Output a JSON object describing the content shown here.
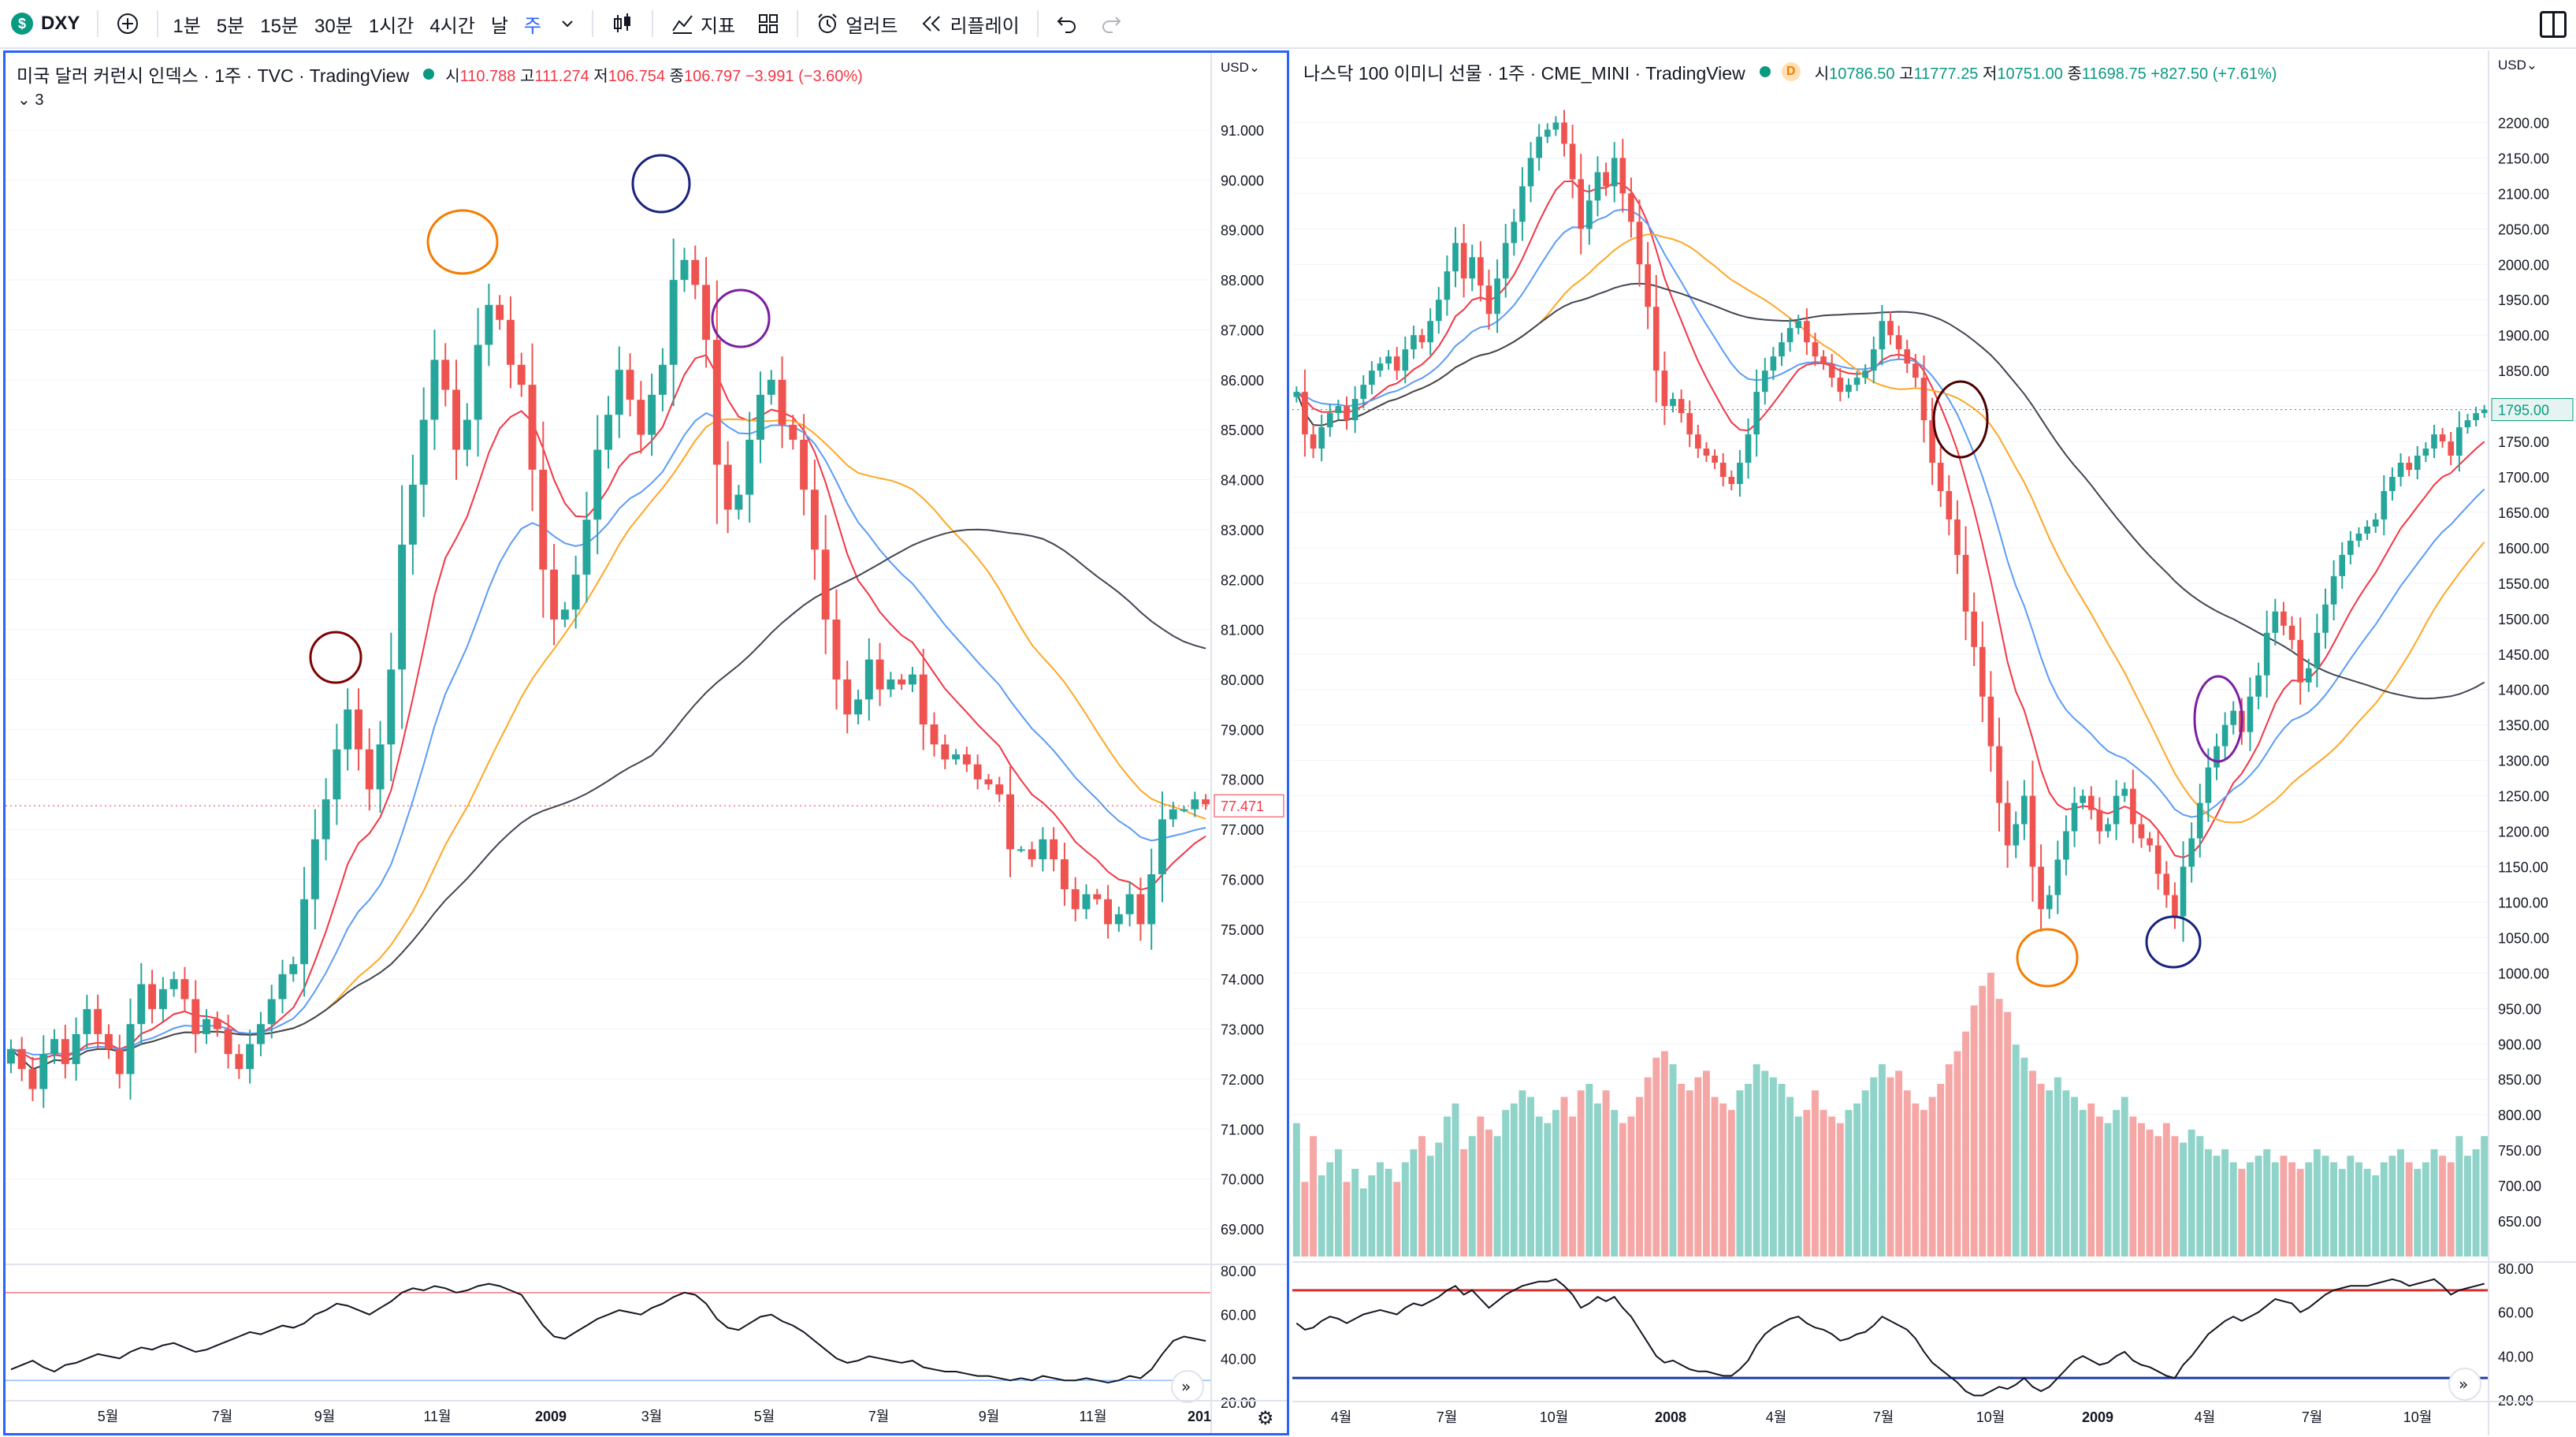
{
  "toolbar": {
    "symbol_icon": "$",
    "symbol": "DXY",
    "add_icon": "plus-circle-icon",
    "intervals": [
      "1분",
      "5분",
      "15분",
      "30분",
      "1시간",
      "4시간",
      "날",
      "주"
    ],
    "active_interval": "주",
    "indicators_label": "지표",
    "alert_label": "얼러트",
    "replay_label": "리플레이"
  },
  "colors": {
    "up": "#26a69a",
    "down": "#ef5350",
    "ma1": "#f23645",
    "ma2": "#5b9cf6",
    "ma3": "#ffa726",
    "ma4": "#434651",
    "rsi": "#131722",
    "volume_up": "#8fd3c9",
    "volume_down": "#f5a7a6"
  },
  "left": {
    "title": "미국 달러 커런시 인덱스 · 1주 · TVC · TradingView",
    "ohlc": {
      "o_label": "시",
      "o": "110.788",
      "h_label": "고",
      "h": "111.274",
      "l_label": "저",
      "l": "106.754",
      "c_label": "종",
      "c": "106.797",
      "chg": "−3.991 (−3.60%)"
    },
    "indicator_count": "3",
    "currency": "USD",
    "last_price": "77.471"
  },
  "right": {
    "title": "나스닥 100 이미니 선물 · 1주 · CME_MINI · TradingView",
    "d_badge": "D",
    "ohlc": {
      "o_label": "시",
      "o": "10786.50",
      "h_label": "고",
      "h": "11777.25",
      "l_label": "저",
      "l": "10751.00",
      "c_label": "종",
      "c": "11698.75",
      "chg": "+827.50 (+7.61%)"
    },
    "currency": "USD",
    "last_price": "1795.00"
  },
  "chart_data": [
    {
      "type": "candlestick",
      "title": "미국 달러 커런시 인덱스 · 1주 · TVC · TradingView",
      "ylim": [
        68.4,
        91.6
      ],
      "y_ticks": [
        "91.000",
        "90.000",
        "89.000",
        "88.000",
        "87.000",
        "86.000",
        "85.000",
        "84.000",
        "83.000",
        "82.000",
        "81.000",
        "80.000",
        "79.000",
        "78.000",
        "77.000",
        "76.000",
        "75.000",
        "74.000",
        "73.000",
        "72.000",
        "71.000",
        "70.000",
        "69.000"
      ],
      "x_ticks": [
        "5월",
        "7월",
        "9월",
        "11월",
        "2009",
        "3월",
        "5월",
        "7월",
        "9월",
        "11월",
        "201"
      ],
      "close": [
        72.6,
        72.2,
        71.8,
        72.5,
        72.8,
        72.3,
        72.9,
        73.4,
        72.9,
        72.6,
        72.1,
        73.1,
        73.9,
        73.4,
        73.8,
        74.0,
        73.6,
        72.9,
        73.2,
        73.0,
        72.5,
        72.2,
        72.7,
        73.1,
        73.6,
        74.1,
        74.3,
        75.6,
        76.8,
        77.6,
        78.6,
        79.4,
        78.6,
        77.8,
        78.7,
        80.2,
        82.7,
        83.9,
        85.2,
        86.4,
        85.8,
        84.6,
        85.2,
        86.7,
        87.5,
        87.2,
        86.3,
        85.9,
        84.2,
        82.2,
        81.2,
        81.4,
        82.1,
        83.2,
        84.6,
        85.3,
        86.2,
        85.6,
        84.9,
        85.7,
        86.3,
        88.0,
        88.4,
        87.9,
        86.8,
        84.3,
        83.4,
        83.7,
        84.8,
        85.7,
        86.0,
        85.1,
        84.8,
        83.8,
        82.6,
        81.2,
        80.0,
        79.3,
        79.6,
        80.4,
        79.8,
        80.0,
        79.9,
        80.1,
        79.1,
        78.7,
        78.4,
        78.5,
        78.3,
        78.0,
        77.9,
        77.7,
        76.6,
        76.6,
        76.4,
        76.8,
        76.4,
        75.8,
        75.4,
        75.7,
        75.6,
        75.1,
        75.3,
        75.7,
        75.1,
        76.1,
        77.2,
        77.4,
        77.4,
        77.6,
        77.5
      ],
      "rsi": {
        "ylim": [
          20,
          80
        ],
        "overbought": 70,
        "oversold": 30,
        "values": [
          35,
          37,
          39,
          36,
          34,
          37,
          38,
          40,
          42,
          41,
          40,
          43,
          45,
          44,
          46,
          47,
          45,
          43,
          44,
          46,
          48,
          50,
          52,
          51,
          53,
          55,
          54,
          56,
          60,
          62,
          65,
          64,
          62,
          60,
          63,
          66,
          70,
          72,
          71,
          73,
          72,
          70,
          71,
          73,
          74,
          73,
          71,
          69,
          62,
          55,
          50,
          49,
          52,
          55,
          58,
          60,
          62,
          61,
          60,
          63,
          65,
          68,
          70,
          69,
          65,
          58,
          54,
          53,
          56,
          59,
          60,
          57,
          55,
          52,
          48,
          44,
          40,
          38,
          39,
          41,
          40,
          39,
          38,
          39,
          36,
          35,
          34,
          34,
          33,
          32,
          32,
          31,
          30,
          31,
          30,
          32,
          31,
          30,
          30,
          31,
          30,
          29,
          30,
          32,
          31,
          35,
          42,
          48,
          50,
          49,
          48
        ]
      }
    },
    {
      "type": "candlestick",
      "title": "나스닥 100 이미니 선물 · 1주 · CME_MINI · TradingView",
      "ylim": [
        600,
        2235
      ],
      "y_ticks": [
        "2200.00",
        "2150.00",
        "2100.00",
        "2050.00",
        "2000.00",
        "1950.00",
        "1900.00",
        "1850.00",
        "1800.00",
        "1750.00",
        "1700.00",
        "1650.00",
        "1600.00",
        "1550.00",
        "1500.00",
        "1450.00",
        "1400.00",
        "1350.00",
        "1300.00",
        "1250.00",
        "1200.00",
        "1150.00",
        "1100.00",
        "1050.00",
        "1000.00",
        "950.00",
        "900.00",
        "850.00",
        "800.00",
        "750.00",
        "700.00",
        "650.00"
      ],
      "x_ticks": [
        "4월",
        "7월",
        "10월",
        "2008",
        "4월",
        "7월",
        "10월",
        "2009",
        "4월",
        "7월",
        "10월"
      ],
      "close": [
        1820,
        1760,
        1740,
        1770,
        1790,
        1800,
        1780,
        1810,
        1830,
        1850,
        1860,
        1870,
        1850,
        1880,
        1900,
        1890,
        1920,
        1950,
        1990,
        2030,
        1980,
        2010,
        1970,
        1930,
        1980,
        2030,
        2060,
        2110,
        2150,
        2180,
        2190,
        2200,
        2170,
        2120,
        2050,
        2090,
        2130,
        2110,
        2150,
        2100,
        2060,
        2000,
        1940,
        1850,
        1800,
        1810,
        1790,
        1760,
        1740,
        1730,
        1720,
        1700,
        1690,
        1720,
        1760,
        1820,
        1850,
        1870,
        1890,
        1910,
        1920,
        1890,
        1870,
        1860,
        1840,
        1820,
        1830,
        1840,
        1850,
        1880,
        1920,
        1900,
        1880,
        1860,
        1840,
        1780,
        1720,
        1680,
        1640,
        1590,
        1510,
        1460,
        1390,
        1320,
        1240,
        1180,
        1210,
        1250,
        1150,
        1090,
        1110,
        1160,
        1200,
        1240,
        1250,
        1230,
        1200,
        1210,
        1250,
        1260,
        1210,
        1190,
        1180,
        1140,
        1110,
        1080,
        1150,
        1190,
        1240,
        1290,
        1320,
        1350,
        1370,
        1340,
        1390,
        1420,
        1480,
        1510,
        1490,
        1470,
        1410,
        1430,
        1480,
        1520,
        1560,
        1590,
        1610,
        1620,
        1630,
        1640,
        1680,
        1700,
        1720,
        1710,
        1730,
        1740,
        1760,
        1750,
        1730,
        1770,
        1780,
        1790,
        1795
      ],
      "volume": [
        780,
        690,
        760,
        700,
        720,
        740,
        690,
        710,
        680,
        700,
        720,
        710,
        690,
        720,
        740,
        760,
        730,
        750,
        790,
        810,
        740,
        760,
        790,
        770,
        760,
        800,
        810,
        830,
        820,
        790,
        780,
        800,
        820,
        790,
        830,
        840,
        810,
        830,
        800,
        780,
        790,
        820,
        850,
        880,
        890,
        870,
        840,
        830,
        850,
        860,
        820,
        810,
        800,
        830,
        840,
        870,
        860,
        850,
        840,
        820,
        790,
        800,
        830,
        800,
        790,
        780,
        800,
        810,
        830,
        850,
        870,
        850,
        860,
        830,
        810,
        800,
        820,
        840,
        870,
        890,
        920,
        960,
        990,
        1010,
        970,
        950,
        900,
        880,
        860,
        840,
        830,
        850,
        830,
        820,
        800,
        810,
        790,
        780,
        800,
        820,
        790,
        780,
        770,
        760,
        780,
        760,
        750,
        770,
        760,
        740,
        730,
        740,
        720,
        710,
        720,
        730,
        740,
        720,
        730,
        720,
        710,
        720,
        740,
        730,
        720,
        710,
        730,
        720,
        710,
        700,
        720,
        730,
        740,
        720,
        710,
        720,
        740,
        730,
        720,
        760,
        730,
        740,
        760
      ],
      "rsi": {
        "ylim": [
          20,
          80
        ],
        "overbought": 70,
        "oversold": 30,
        "values": [
          55,
          52,
          53,
          56,
          58,
          57,
          55,
          57,
          59,
          60,
          61,
          60,
          59,
          62,
          64,
          63,
          65,
          67,
          70,
          72,
          68,
          70,
          66,
          62,
          65,
          68,
          70,
          72,
          73,
          74,
          74,
          75,
          72,
          68,
          62,
          64,
          67,
          65,
          67,
          62,
          58,
          52,
          46,
          40,
          37,
          38,
          36,
          34,
          33,
          33,
          32,
          31,
          31,
          34,
          38,
          45,
          50,
          53,
          55,
          57,
          58,
          55,
          53,
          52,
          50,
          47,
          48,
          50,
          51,
          54,
          58,
          56,
          54,
          52,
          48,
          42,
          37,
          34,
          31,
          28,
          24,
          22,
          22,
          24,
          26,
          25,
          27,
          30,
          26,
          24,
          26,
          30,
          34,
          38,
          40,
          38,
          36,
          37,
          40,
          42,
          38,
          36,
          35,
          33,
          31,
          30,
          36,
          40,
          45,
          50,
          53,
          56,
          58,
          56,
          58,
          60,
          63,
          66,
          65,
          64,
          60,
          62,
          65,
          68,
          70,
          71,
          72,
          72,
          72,
          73,
          74,
          75,
          74,
          72,
          73,
          74,
          75,
          72,
          68,
          70,
          71,
          72,
          73
        ]
      }
    }
  ]
}
